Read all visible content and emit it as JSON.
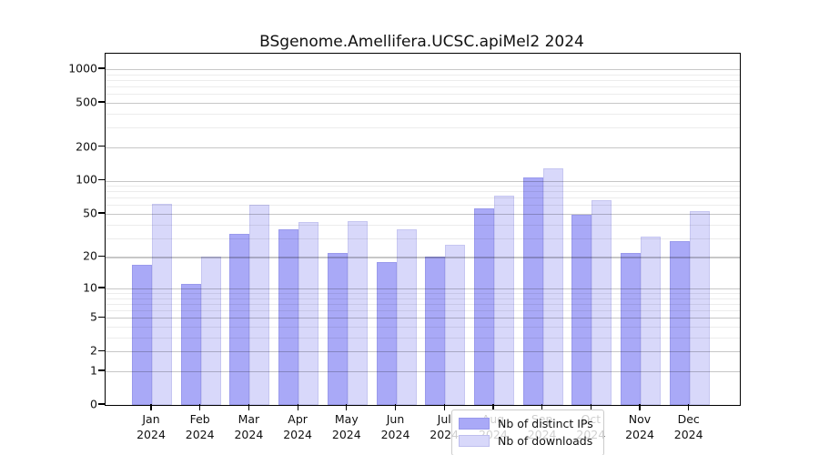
{
  "chart_data": {
    "type": "bar",
    "title": "BSgenome.Amellifera.UCSC.apiMel2 2024",
    "categories": [
      "Jan",
      "Feb",
      "Mar",
      "Apr",
      "May",
      "Jun",
      "Jul",
      "Aug",
      "Sep",
      "Oct",
      "Nov",
      "Dec"
    ],
    "year_label": "2024",
    "series": [
      {
        "name": "Nb of distinct IPs",
        "color": "#a9a9f7",
        "values": [
          17,
          11,
          33,
          36,
          22,
          18,
          20,
          56,
          106,
          49,
          22,
          28
        ]
      },
      {
        "name": "Nb of downloads",
        "color": "#d8d8fa",
        "values": [
          62,
          20,
          60,
          42,
          43,
          36,
          26,
          73,
          130,
          66,
          31,
          53
        ]
      }
    ],
    "y_scale": "log10(value+1)",
    "y_ticks": [
      0,
      1,
      2,
      5,
      10,
      20,
      50,
      100,
      200,
      500,
      1000
    ],
    "y_minor_ticks": [
      3,
      4,
      6,
      7,
      8,
      9,
      30,
      40,
      60,
      70,
      80,
      90,
      300,
      400,
      600,
      700,
      800,
      900
    ],
    "ylim": [
      0,
      1350
    ],
    "xlabel": "",
    "ylabel": "",
    "grid": true,
    "legend_position": "bottom-center"
  },
  "legend": {
    "items": [
      {
        "label": "Nb of distinct IPs",
        "color": "#a9a9f7"
      },
      {
        "label": "Nb of downloads",
        "color": "#d8d8fa"
      }
    ]
  },
  "colors": {
    "bar_distinct_ips": "#a9a9f7",
    "bar_downloads": "#d8d8fa",
    "grid_major": "#c7c7c7",
    "grid_minor": "#ececec",
    "axis": "#000000",
    "background": "#ffffff"
  }
}
